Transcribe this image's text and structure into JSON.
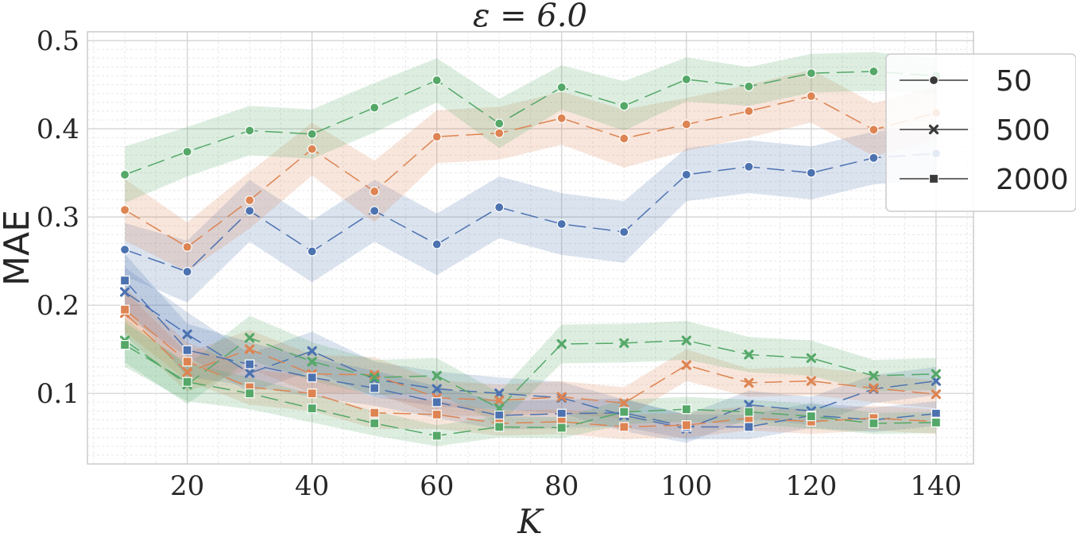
{
  "chart_data": {
    "type": "line",
    "title": "ε = 6.0",
    "xlabel": "K",
    "ylabel": "MAE",
    "xlim": [
      4,
      146
    ],
    "ylim": [
      0.02,
      0.51
    ],
    "xticks": [
      20,
      40,
      60,
      80,
      100,
      120,
      140
    ],
    "xtick_labels": [
      "20",
      "40",
      "60",
      "80",
      "100",
      "120",
      "140"
    ],
    "yticks": [
      0.1,
      0.2,
      0.3,
      0.4,
      0.5
    ],
    "ytick_labels": [
      "0.1",
      "0.2",
      "0.3",
      "0.4",
      "0.5"
    ],
    "grid": true,
    "x": [
      10,
      20,
      30,
      40,
      50,
      60,
      70,
      80,
      90,
      100,
      110,
      120,
      130,
      140
    ],
    "legend": {
      "placement": "right",
      "entries": [
        {
          "label": "50",
          "marker": "circle"
        },
        {
          "label": "500",
          "marker": "x"
        },
        {
          "label": "2000",
          "marker": "square"
        }
      ]
    },
    "series": [
      {
        "name": "50 (blue)",
        "marker": "circle",
        "color": "#4c72b0",
        "values": [
          0.263,
          0.238,
          0.307,
          0.261,
          0.307,
          0.269,
          0.311,
          0.292,
          0.283,
          0.348,
          0.357,
          0.35,
          0.367,
          0.372
        ],
        "band": [
          0.03,
          0.035,
          0.035,
          0.035,
          0.035,
          0.035,
          0.035,
          0.035,
          0.035,
          0.03,
          0.03,
          0.03,
          0.03,
          0.03
        ]
      },
      {
        "name": "50 (orange)",
        "marker": "circle",
        "color": "#dd8452",
        "values": [
          0.308,
          0.266,
          0.319,
          0.377,
          0.329,
          0.391,
          0.395,
          0.412,
          0.389,
          0.405,
          0.42,
          0.437,
          0.399,
          0.418
        ],
        "band": [
          0.035,
          0.028,
          0.032,
          0.03,
          0.035,
          0.03,
          0.03,
          0.03,
          0.033,
          0.03,
          0.03,
          0.03,
          0.03,
          0.03
        ]
      },
      {
        "name": "50 (green)",
        "marker": "circle",
        "color": "#55a868",
        "values": [
          0.348,
          0.374,
          0.398,
          0.394,
          0.424,
          0.455,
          0.406,
          0.447,
          0.426,
          0.456,
          0.448,
          0.463,
          0.465,
          0.46
        ],
        "band": [
          0.032,
          0.028,
          0.028,
          0.028,
          0.028,
          0.025,
          0.028,
          0.025,
          0.028,
          0.025,
          0.022,
          0.022,
          0.022,
          0.02
        ]
      },
      {
        "name": "500 (blue)",
        "marker": "x",
        "color": "#4c72b0",
        "values": [
          0.215,
          0.167,
          0.123,
          0.148,
          0.116,
          0.105,
          0.1,
          0.095,
          0.075,
          0.06,
          0.087,
          0.08,
          0.105,
          0.114
        ],
        "band": [
          0.028,
          0.025,
          0.022,
          0.022,
          0.02,
          0.02,
          0.018,
          0.018,
          0.018,
          0.016,
          0.016,
          0.016,
          0.016,
          0.016
        ]
      },
      {
        "name": "500 (orange)",
        "marker": "x",
        "color": "#dd8452",
        "values": [
          0.191,
          0.124,
          0.15,
          0.122,
          0.121,
          0.095,
          0.092,
          0.096,
          0.089,
          0.132,
          0.112,
          0.114,
          0.106,
          0.099
        ],
        "band": [
          0.025,
          0.022,
          0.022,
          0.022,
          0.02,
          0.02,
          0.018,
          0.018,
          0.018,
          0.018,
          0.016,
          0.016,
          0.016,
          0.016
        ]
      },
      {
        "name": "500 (green)",
        "marker": "x",
        "color": "#55a868",
        "values": [
          0.16,
          0.11,
          0.163,
          0.136,
          0.118,
          0.12,
          0.083,
          0.156,
          0.157,
          0.16,
          0.144,
          0.14,
          0.12,
          0.122
        ],
        "band": [
          0.025,
          0.022,
          0.025,
          0.022,
          0.02,
          0.02,
          0.018,
          0.022,
          0.022,
          0.022,
          0.02,
          0.02,
          0.018,
          0.018
        ]
      },
      {
        "name": "2000 (blue)",
        "marker": "square",
        "color": "#4c72b0",
        "values": [
          0.228,
          0.149,
          0.133,
          0.118,
          0.106,
          0.09,
          0.075,
          0.077,
          0.078,
          0.062,
          0.062,
          0.075,
          0.07,
          0.077
        ],
        "band": [
          0.03,
          0.03,
          0.025,
          0.022,
          0.02,
          0.018,
          0.016,
          0.016,
          0.016,
          0.014,
          0.014,
          0.014,
          0.014,
          0.014
        ]
      },
      {
        "name": "2000 (orange)",
        "marker": "square",
        "color": "#dd8452",
        "values": [
          0.195,
          0.136,
          0.107,
          0.1,
          0.078,
          0.076,
          0.066,
          0.068,
          0.062,
          0.064,
          0.072,
          0.068,
          0.072,
          0.068
        ],
        "band": [
          0.025,
          0.022,
          0.02,
          0.02,
          0.018,
          0.016,
          0.014,
          0.014,
          0.014,
          0.014,
          0.014,
          0.014,
          0.014,
          0.014
        ]
      },
      {
        "name": "2000 (green)",
        "marker": "square",
        "color": "#55a868",
        "values": [
          0.155,
          0.113,
          0.1,
          0.083,
          0.066,
          0.052,
          0.062,
          0.061,
          0.079,
          0.082,
          0.079,
          0.074,
          0.066,
          0.067
        ],
        "band": [
          0.025,
          0.022,
          0.018,
          0.016,
          0.014,
          0.012,
          0.012,
          0.012,
          0.014,
          0.014,
          0.014,
          0.014,
          0.012,
          0.012
        ]
      }
    ]
  }
}
